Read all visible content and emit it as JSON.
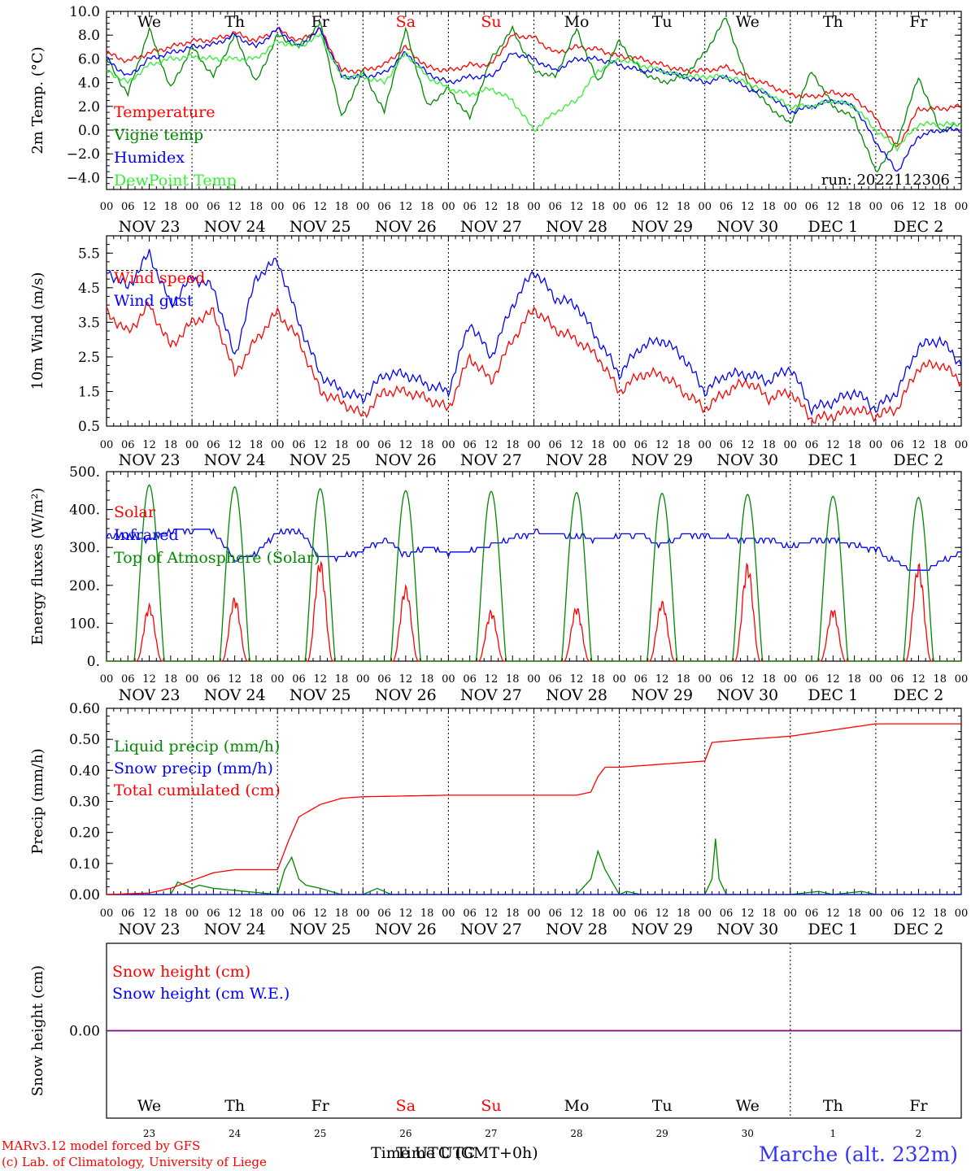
{
  "colors": {
    "red": "#ff0000",
    "green": "#008800",
    "blue": "#0000ff",
    "lightgreen": "#33ee33",
    "black": "#000000",
    "purple": "#800080",
    "footer_blue": "#3333ff"
  },
  "weekday_labels": [
    {
      "label": "We",
      "color": "#000000"
    },
    {
      "label": "Th",
      "color": "#000000"
    },
    {
      "label": "Fr",
      "color": "#000000"
    },
    {
      "label": "Sa",
      "color": "#ff0000"
    },
    {
      "label": "Su",
      "color": "#ff0000"
    },
    {
      "label": "Mo",
      "color": "#000000"
    },
    {
      "label": "Tu",
      "color": "#000000"
    },
    {
      "label": "We",
      "color": "#000000"
    },
    {
      "label": "Th",
      "color": "#000000"
    },
    {
      "label": "Fr",
      "color": "#000000"
    }
  ],
  "date_labels": [
    "NOV 23",
    "NOV 24",
    "NOV 25",
    "NOV 26",
    "NOV 27",
    "NOV 28",
    "NOV 29",
    "NOV 30",
    "DEC  1",
    "DEC  2"
  ],
  "day_numbers": [
    "23",
    "24",
    "25",
    "26",
    "27",
    "28",
    "29",
    "30",
    "1",
    "2"
  ],
  "hour_labels": [
    "00",
    "06",
    "12",
    "18"
  ],
  "hour_end_label": "00",
  "footer": {
    "model_line": "MARv3.12 model forced by GFS",
    "credit_line": "(c) Lab. of Climatology, University of Liege",
    "time_label": "Time UTC (GMT+0h)",
    "time_label_overlay": "Time UTC",
    "station": "Marche (alt. 232m)"
  },
  "chart_data": [
    {
      "type": "line",
      "title": "",
      "ylabel": "2m Temp. (°C)",
      "ylim": [
        -5.0,
        10.0
      ],
      "yticks": [
        "10.0",
        "8.0",
        "6.0",
        "4.0",
        "2.0",
        "0.0",
        "−2.0",
        "−4.0"
      ],
      "ytick_values": [
        10,
        8,
        6,
        4,
        2,
        0,
        -2,
        -4
      ],
      "annotation": "run: 2022112306",
      "x_unit": "hours since NOV 23 00 UTC",
      "xlim": [
        0,
        240
      ],
      "reference_line": 0,
      "series": [
        {
          "name": "Temperature",
          "color": "#ff0000",
          "x": [
            0,
            6,
            12,
            18,
            24,
            30,
            36,
            42,
            48,
            54,
            60,
            66,
            72,
            78,
            84,
            90,
            96,
            102,
            108,
            114,
            120,
            126,
            132,
            138,
            144,
            150,
            156,
            162,
            168,
            174,
            180,
            186,
            192,
            198,
            204,
            210,
            216,
            222,
            228,
            234,
            240
          ],
          "y": [
            6.5,
            5.8,
            6.5,
            7.0,
            7.5,
            7.6,
            8.2,
            7.5,
            8.5,
            7.5,
            8.5,
            5.0,
            5.0,
            5.5,
            7.0,
            5.3,
            5.0,
            5.5,
            5.5,
            8.0,
            7.8,
            6.5,
            7.0,
            6.8,
            6.2,
            6.0,
            5.5,
            5.0,
            5.0,
            5.3,
            4.5,
            3.8,
            3.0,
            2.8,
            3.2,
            2.8,
            1.0,
            -1.5,
            1.8,
            1.8,
            2.0
          ]
        },
        {
          "name": "Vigne temp",
          "color": "#008800",
          "x": [
            0,
            6,
            12,
            18,
            24,
            30,
            36,
            42,
            48,
            54,
            60,
            66,
            72,
            78,
            84,
            90,
            96,
            102,
            108,
            114,
            120,
            126,
            132,
            138,
            144,
            150,
            156,
            162,
            168,
            174,
            180,
            186,
            192,
            198,
            204,
            210,
            216,
            222,
            228,
            234,
            240
          ],
          "y": [
            6.0,
            3.0,
            8.5,
            3.5,
            7.0,
            4.5,
            8.0,
            4.0,
            8.0,
            7.0,
            9.0,
            1.0,
            5.0,
            1.5,
            8.5,
            2.0,
            3.5,
            1.0,
            6.0,
            8.5,
            5.0,
            4.5,
            8.5,
            4.0,
            7.5,
            5.0,
            4.0,
            4.5,
            6.5,
            9.5,
            4.0,
            2.0,
            0.5,
            5.0,
            2.0,
            1.0,
            -3.5,
            -1.0,
            4.5,
            0.0,
            0.5
          ]
        },
        {
          "name": "Humidex",
          "color": "#0000ff",
          "x": [
            0,
            6,
            12,
            18,
            24,
            30,
            36,
            42,
            48,
            54,
            60,
            66,
            72,
            78,
            84,
            90,
            96,
            102,
            108,
            114,
            120,
            126,
            132,
            138,
            144,
            150,
            156,
            162,
            168,
            174,
            180,
            186,
            192,
            198,
            204,
            210,
            216,
            222,
            228,
            234,
            240
          ],
          "y": [
            6.0,
            4.5,
            6.0,
            6.5,
            7.0,
            7.2,
            8.0,
            7.0,
            8.5,
            7.0,
            8.5,
            4.5,
            4.5,
            4.8,
            6.5,
            4.8,
            4.0,
            4.5,
            4.5,
            6.5,
            6.0,
            5.0,
            6.0,
            6.0,
            5.5,
            5.0,
            5.0,
            4.5,
            4.0,
            4.5,
            3.5,
            3.0,
            1.5,
            2.0,
            2.5,
            2.0,
            -1.0,
            -3.5,
            -0.5,
            0.0,
            0.0
          ]
        },
        {
          "name": "DewPoint Temp",
          "color": "#33ee33",
          "x": [
            0,
            6,
            12,
            18,
            24,
            30,
            36,
            42,
            48,
            54,
            60,
            66,
            72,
            78,
            84,
            90,
            96,
            102,
            108,
            114,
            120,
            126,
            132,
            138,
            144,
            150,
            156,
            162,
            168,
            174,
            180,
            186,
            192,
            198,
            204,
            210,
            216,
            222,
            228,
            234,
            240
          ],
          "y": [
            5.0,
            4.0,
            5.5,
            6.0,
            6.2,
            6.0,
            6.0,
            6.0,
            7.5,
            7.0,
            8.0,
            4.5,
            4.5,
            4.0,
            6.5,
            4.5,
            3.5,
            3.0,
            3.5,
            2.5,
            0.0,
            1.5,
            2.5,
            5.0,
            6.0,
            5.5,
            5.0,
            4.5,
            4.5,
            4.5,
            4.0,
            3.0,
            2.0,
            2.0,
            2.5,
            2.0,
            0.0,
            -1.5,
            0.5,
            0.5,
            0.5
          ]
        }
      ]
    },
    {
      "type": "line",
      "title": "",
      "ylabel": "10m Wind (m/s)",
      "ylim": [
        0.5,
        6.0
      ],
      "yticks": [
        "5.5",
        "4.5",
        "3.5",
        "2.5",
        "1.5",
        "0.5"
      ],
      "ytick_values": [
        5.5,
        4.5,
        3.5,
        2.5,
        1.5,
        0.5
      ],
      "x_unit": "hours since NOV 23 00 UTC",
      "xlim": [
        0,
        240
      ],
      "reference_line": 5.0,
      "series": [
        {
          "name": "Wind speed",
          "color": "#ff0000",
          "x": [
            0,
            6,
            12,
            18,
            24,
            30,
            36,
            42,
            48,
            54,
            60,
            66,
            72,
            78,
            84,
            90,
            96,
            102,
            108,
            114,
            120,
            126,
            132,
            138,
            144,
            150,
            156,
            162,
            168,
            174,
            180,
            186,
            192,
            198,
            204,
            210,
            216,
            222,
            228,
            234,
            240
          ],
          "y": [
            3.8,
            3.2,
            4.0,
            2.8,
            3.5,
            3.8,
            2.0,
            3.0,
            3.8,
            3.0,
            1.5,
            1.2,
            0.8,
            1.5,
            1.5,
            1.3,
            1.0,
            2.5,
            1.8,
            3.0,
            3.9,
            3.3,
            3.0,
            2.5,
            1.5,
            2.0,
            2.0,
            1.5,
            1.0,
            1.5,
            1.8,
            1.3,
            1.5,
            0.7,
            0.8,
            1.0,
            0.8,
            1.0,
            2.2,
            2.3,
            1.8
          ]
        },
        {
          "name": "Wind gust",
          "color": "#0000ff",
          "x": [
            0,
            6,
            12,
            18,
            24,
            30,
            36,
            42,
            48,
            54,
            60,
            66,
            72,
            78,
            84,
            90,
            96,
            102,
            108,
            114,
            120,
            126,
            132,
            138,
            144,
            150,
            156,
            162,
            168,
            174,
            180,
            186,
            192,
            198,
            204,
            210,
            216,
            222,
            228,
            234,
            240
          ],
          "y": [
            5.0,
            4.5,
            5.5,
            4.0,
            4.8,
            4.5,
            2.5,
            4.8,
            5.3,
            3.5,
            2.0,
            1.5,
            1.3,
            2.0,
            2.0,
            1.7,
            1.5,
            3.5,
            2.5,
            4.0,
            5.0,
            4.2,
            4.0,
            3.0,
            2.0,
            2.8,
            3.0,
            2.5,
            1.5,
            2.0,
            2.0,
            1.8,
            2.2,
            1.0,
            1.2,
            1.5,
            1.0,
            1.5,
            2.8,
            3.0,
            2.3
          ]
        }
      ]
    },
    {
      "type": "line",
      "title": "",
      "ylabel": "Energy fluxes (W/m²)",
      "ylim": [
        0,
        500
      ],
      "yticks": [
        "500.",
        "400.",
        "300.",
        "200.",
        "100.",
        "0."
      ],
      "ytick_values": [
        500,
        400,
        300,
        200,
        100,
        0
      ],
      "x_unit": "hours since NOV 23 00 UTC",
      "xlim": [
        0,
        240
      ],
      "solar_peak_hour": 12,
      "series": [
        {
          "name": "Solar",
          "color": "#ff0000",
          "daily_peak": [
            150,
            170,
            270,
            200,
            135,
            145,
            160,
            260,
            140,
            260
          ]
        },
        {
          "name": "Infrared",
          "color": "#0000ff",
          "x": [
            0,
            6,
            12,
            18,
            24,
            30,
            36,
            42,
            48,
            54,
            60,
            66,
            72,
            78,
            84,
            90,
            96,
            102,
            108,
            114,
            120,
            126,
            132,
            138,
            144,
            150,
            156,
            162,
            168,
            174,
            180,
            186,
            192,
            198,
            204,
            210,
            216,
            222,
            228,
            234,
            240
          ],
          "y": [
            330,
            330,
            320,
            345,
            345,
            345,
            265,
            285,
            340,
            345,
            275,
            275,
            290,
            320,
            280,
            300,
            285,
            290,
            305,
            325,
            340,
            335,
            330,
            320,
            330,
            335,
            305,
            335,
            330,
            325,
            320,
            320,
            300,
            320,
            320,
            305,
            295,
            260,
            235,
            260,
            290
          ]
        },
        {
          "name": "Top of Atmosphere (Solar)",
          "color": "#008800",
          "daily_peak": [
            465,
            460,
            455,
            450,
            448,
            445,
            443,
            440,
            435,
            432
          ]
        }
      ]
    },
    {
      "type": "line",
      "title": "",
      "ylabel": "Precip (mm/h)",
      "ylim": [
        0,
        0.6
      ],
      "yticks": [
        "0.60",
        "0.50",
        "0.40",
        "0.30",
        "0.20",
        "0.10",
        "0.00"
      ],
      "ytick_values": [
        0.6,
        0.5,
        0.4,
        0.3,
        0.2,
        0.1,
        0.0
      ],
      "x_unit": "hours since NOV 23 00 UTC",
      "xlim": [
        0,
        240
      ],
      "series": [
        {
          "name": "Liquid precip (mm/h)",
          "color": "#008800",
          "x": [
            0,
            18,
            20,
            24,
            26,
            30,
            48,
            50,
            52,
            54,
            56,
            60,
            66,
            72,
            76,
            80,
            120,
            132,
            136,
            138,
            140,
            142,
            144,
            146,
            150,
            168,
            170,
            171,
            172,
            174,
            180,
            192,
            200,
            204,
            212,
            216,
            240
          ],
          "y": [
            0,
            0,
            0.04,
            0.02,
            0.03,
            0.02,
            0.0,
            0.08,
            0.12,
            0.05,
            0.03,
            0.02,
            0.0,
            0.0,
            0.02,
            0.0,
            0.0,
            0.0,
            0.05,
            0.14,
            0.08,
            0.04,
            0.0,
            0.01,
            0.0,
            0.0,
            0.05,
            0.18,
            0.05,
            0.0,
            0.0,
            0.0,
            0.01,
            0.0,
            0.01,
            0.0,
            0.0
          ]
        },
        {
          "name": "Snow precip (mm/h)",
          "color": "#0000ff",
          "x": [
            0,
            240
          ],
          "y": [
            0,
            0
          ]
        },
        {
          "name": "Total cumulated (cm)",
          "color": "#ff0000",
          "x": [
            0,
            12,
            18,
            24,
            30,
            36,
            48,
            51,
            54,
            60,
            66,
            72,
            96,
            120,
            132,
            136,
            138,
            140,
            144,
            156,
            168,
            169,
            170,
            180,
            192,
            204,
            216,
            240
          ],
          "y": [
            0.0,
            0.005,
            0.02,
            0.045,
            0.07,
            0.08,
            0.08,
            0.17,
            0.25,
            0.29,
            0.31,
            0.315,
            0.32,
            0.32,
            0.32,
            0.33,
            0.38,
            0.41,
            0.41,
            0.42,
            0.43,
            0.46,
            0.49,
            0.5,
            0.51,
            0.53,
            0.55,
            0.55
          ]
        }
      ]
    },
    {
      "type": "line",
      "title": "",
      "ylabel": "Snow height (cm)",
      "ylim": [
        -1,
        1
      ],
      "yticks": [
        "0.00"
      ],
      "ytick_values": [
        0
      ],
      "x_unit": "hours since NOV 23 00 UTC",
      "xlim": [
        0,
        240
      ],
      "series": [
        {
          "name": "Snow height (cm)",
          "color": "#ff0000",
          "x": [
            0,
            240
          ],
          "y": [
            0,
            0
          ]
        },
        {
          "name": "Snow height (cm W.E.)",
          "color": "#0000ff",
          "x": [
            0,
            240
          ],
          "y": [
            0,
            0
          ]
        }
      ]
    }
  ]
}
